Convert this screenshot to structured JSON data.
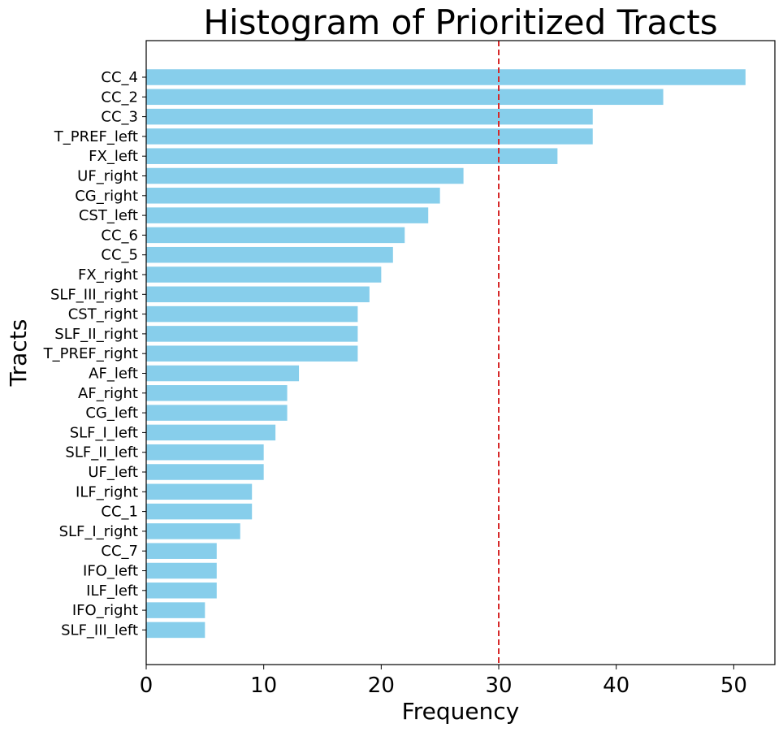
{
  "chart_data": {
    "type": "bar",
    "orientation": "horizontal",
    "title": "Histogram of Prioritized Tracts",
    "xlabel": "Frequency",
    "ylabel": "Tracts",
    "xlim": [
      0,
      53.5
    ],
    "xticks": [
      0,
      10,
      20,
      30,
      40,
      50
    ],
    "grid": false,
    "bar_color": "#87ceeb",
    "threshold": {
      "value": 30,
      "color": "#d62728",
      "style": "dashed"
    },
    "categories": [
      "CC_4",
      "CC_2",
      "CC_3",
      "T_PREF_left",
      "FX_left",
      "UF_right",
      "CG_right",
      "CST_left",
      "CC_6",
      "CC_5",
      "FX_right",
      "SLF_III_right",
      "CST_right",
      "SLF_II_right",
      "T_PREF_right",
      "AF_left",
      "AF_right",
      "CG_left",
      "SLF_I_left",
      "SLF_II_left",
      "UF_left",
      "ILF_right",
      "CC_1",
      "SLF_I_right",
      "CC_7",
      "IFO_left",
      "ILF_left",
      "IFO_right",
      "SLF_III_left"
    ],
    "values": [
      51,
      44,
      38,
      38,
      35,
      27,
      25,
      24,
      22,
      21,
      20,
      19,
      18,
      18,
      18,
      13,
      12,
      12,
      11,
      10,
      10,
      9,
      9,
      8,
      6,
      6,
      6,
      5,
      5
    ]
  }
}
